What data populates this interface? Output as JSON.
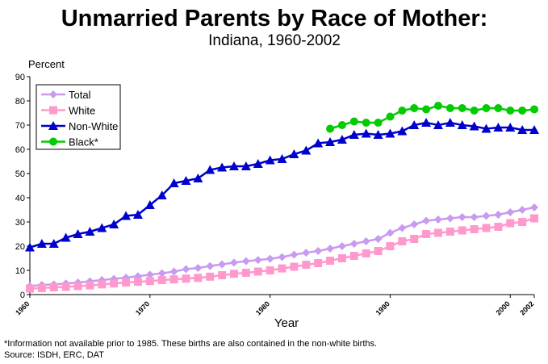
{
  "chart_data": {
    "type": "line",
    "title": "Unmarried Parents by Race of Mother:",
    "subtitle": "Indiana, 1960-2002",
    "y_label": "Percent",
    "x_label": "Year",
    "footnote": "*Information not available prior to 1985.  These births are also contained in the non-white births.",
    "source": "Source:  ISDH, ERC, DAT",
    "x": [
      1960,
      1961,
      1962,
      1963,
      1964,
      1965,
      1966,
      1967,
      1968,
      1969,
      1970,
      1971,
      1972,
      1973,
      1974,
      1975,
      1976,
      1977,
      1978,
      1979,
      1980,
      1981,
      1982,
      1983,
      1984,
      1985,
      1986,
      1987,
      1988,
      1989,
      1990,
      1991,
      1992,
      1993,
      1994,
      1995,
      1996,
      1997,
      1998,
      1999,
      2000,
      2001,
      2002
    ],
    "xlim": [
      1960,
      2002
    ],
    "xticks": [
      1960,
      1970,
      1980,
      1990,
      2000,
      2002
    ],
    "ylim": [
      0,
      90
    ],
    "yticks": [
      0,
      10,
      20,
      30,
      40,
      50,
      60,
      70,
      80,
      90
    ],
    "legend": "upper left",
    "series": [
      {
        "name": "Total",
        "color": "#c89bf0",
        "marker": "diamond",
        "values": [
          3.5,
          4,
          4.2,
          4.6,
          5,
          5.5,
          6,
          6.5,
          7,
          7.6,
          8.2,
          8.8,
          9.5,
          10.5,
          11,
          11.8,
          12.5,
          13.2,
          13.8,
          14.3,
          14.8,
          15.5,
          16.5,
          17.3,
          18,
          19,
          20,
          21,
          22,
          23,
          25.5,
          27.5,
          29,
          30.5,
          31,
          31.5,
          32,
          32,
          32.5,
          33,
          34,
          35,
          36
        ]
      },
      {
        "name": "White",
        "color": "#ff99cc",
        "marker": "square",
        "values": [
          2.5,
          2.7,
          3,
          3.2,
          3.5,
          3.8,
          4.2,
          4.6,
          5,
          5.3,
          5.6,
          6,
          6.3,
          6.6,
          6.9,
          7.4,
          8,
          8.6,
          9,
          9.5,
          10,
          10.8,
          11.5,
          12.3,
          13,
          14,
          15,
          16,
          17,
          18,
          20,
          22,
          23,
          25,
          25.5,
          26,
          26.5,
          27,
          27.5,
          28,
          29.5,
          30,
          31.5
        ]
      },
      {
        "name": "Non-White",
        "color": "#0000cc",
        "marker": "triangle",
        "values": [
          19.5,
          21,
          21,
          23.5,
          25,
          26,
          27.5,
          29,
          32.5,
          33,
          37,
          41,
          46,
          47,
          48,
          51.5,
          52.5,
          53,
          53,
          54,
          55.5,
          56,
          58,
          59.5,
          62.5,
          63,
          64,
          66,
          66.5,
          66,
          66.5,
          67.5,
          70,
          71,
          70,
          71,
          70,
          69.5,
          68.5,
          69,
          69,
          68,
          68
        ]
      },
      {
        "name": "Black*",
        "color": "#00cc00",
        "marker": "circle",
        "values": [
          null,
          null,
          null,
          null,
          null,
          null,
          null,
          null,
          null,
          null,
          null,
          null,
          null,
          null,
          null,
          null,
          null,
          null,
          null,
          null,
          null,
          null,
          null,
          null,
          null,
          68.5,
          70,
          71.5,
          71,
          71,
          73.5,
          76,
          77,
          76.5,
          78,
          77,
          77,
          76,
          77,
          77,
          76,
          76,
          76.5
        ]
      }
    ]
  }
}
